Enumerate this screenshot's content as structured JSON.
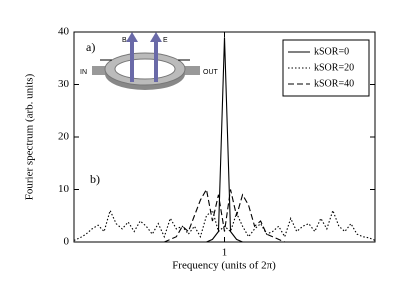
{
  "chart_data": {
    "type": "line",
    "x_label": "Frequency (units of 2π)",
    "y_label": "Fourier spectrum (arb. units)",
    "annotations": [
      "a)",
      "b)",
      "B",
      "E",
      "IN",
      "OUT"
    ],
    "x": [
      0,
      0.04,
      0.08,
      0.12,
      0.16,
      0.2,
      0.24,
      0.28,
      0.32,
      0.36,
      0.4,
      0.44,
      0.48,
      0.52,
      0.56,
      0.6,
      0.64,
      0.68,
      0.72,
      0.76,
      0.8,
      0.84,
      0.88,
      0.92,
      0.96,
      1,
      1.04,
      1.08,
      1.12,
      1.16,
      1.2,
      1.24,
      1.28,
      1.32,
      1.36,
      1.4,
      1.44,
      1.48,
      1.52,
      1.56,
      1.6,
      1.64,
      1.68,
      1.72,
      1.76,
      1.8,
      1.84,
      1.88,
      1.92,
      1.96,
      2
    ],
    "xlim": [
      0,
      2
    ],
    "xticks": [
      1
    ],
    "ylim": [
      0,
      40
    ],
    "yticks": [
      0,
      10,
      20,
      30,
      40
    ],
    "legend": "upper right",
    "series": [
      {
        "name": "kSOR=0",
        "color": "#000",
        "dash": "none",
        "values": [
          0,
          0,
          0,
          0,
          0,
          0,
          0,
          0,
          0,
          0,
          0,
          0,
          0,
          0,
          0,
          0,
          0,
          0,
          0,
          0,
          0,
          0,
          0,
          0.5,
          2,
          39,
          2,
          0.5,
          0,
          0,
          0,
          0,
          0,
          0,
          0,
          0,
          0,
          0,
          0,
          0,
          0,
          0,
          0,
          0,
          0,
          0,
          0,
          0,
          0,
          0,
          0
        ]
      },
      {
        "name": "kSOR=20",
        "color": "#000",
        "dash": "1.5,2",
        "values": [
          0.3,
          0.8,
          1.5,
          2.5,
          3.2,
          2.0,
          6.0,
          3.5,
          2.5,
          3.8,
          2.0,
          4.0,
          3.0,
          1.5,
          3.5,
          1.0,
          4.5,
          2.5,
          3.0,
          1.5,
          3.0,
          1.0,
          5.0,
          6.0,
          2.0,
          3.0,
          2.0,
          5.5,
          3.0,
          1.0,
          2.5,
          3.5,
          1.5,
          2.0,
          3.0,
          1.0,
          4.5,
          2.0,
          3.0,
          3.5,
          2.0,
          4.5,
          2.5,
          6.0,
          3.0,
          2.0,
          3.5,
          1.5,
          1.0,
          0.8,
          0.3
        ]
      },
      {
        "name": "kSOR=40",
        "color": "#000",
        "dash": "6,3",
        "values": [
          0,
          0,
          0,
          0,
          0,
          0,
          0,
          0,
          0,
          0,
          0,
          0,
          0,
          0,
          0,
          0,
          0.5,
          1,
          3,
          2,
          5,
          8,
          10,
          4,
          9,
          2,
          10,
          5,
          9,
          7,
          3,
          4,
          1.5,
          1,
          0.5,
          0,
          0,
          0,
          0,
          0,
          0,
          0,
          0,
          0,
          0,
          0,
          0,
          0,
          0,
          0,
          0
        ]
      }
    ]
  }
}
